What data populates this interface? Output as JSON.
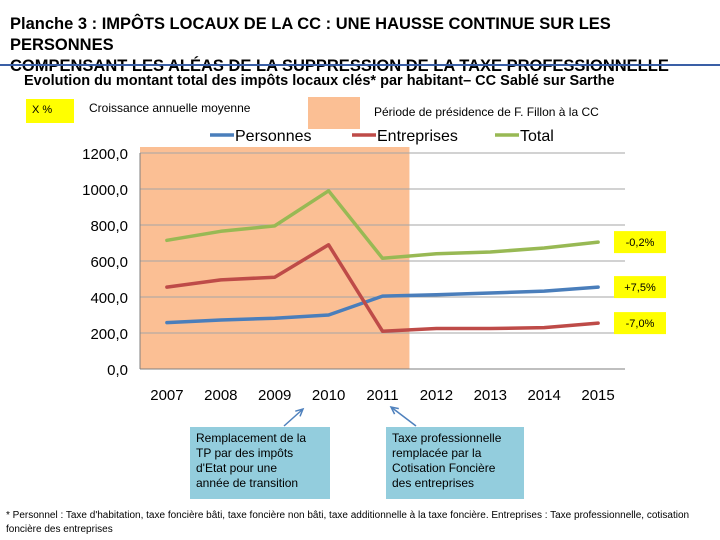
{
  "slide": {
    "title_line1": "Planche 3 : IMPÔTS LOCAUX DE LA CC : UNE HAUSSE CONTINUE  SUR LES PERSONNES",
    "title_line2": "COMPENSANT LES ALÉAS DE LA SUPPRESSION DE LA TAXE PROFESSIONNELLE",
    "subtitle": "Evolution du montant total des impôts locaux clés* par habitant– CC Sablé sur Sarthe",
    "legend_growth_box": "X %",
    "legend_growth_text": "Croissance annuelle moyenne",
    "legend_period_text": "Période de présidence de F. Fillon à la CC",
    "callout_2010": [
      "Remplacement de la",
      "TP par des impôts",
      "d'Etat pour une",
      "année de transition"
    ],
    "callout_2011": [
      "Taxe professionnelle",
      "remplacée par la",
      "Cotisation Foncière",
      "des entreprises"
    ],
    "footnote": "* Personnel : Taxe d'habitation, taxe foncière bâti, taxe foncière non bâti, taxe additionnelle à la taxe foncière. Entreprises : Taxe professionnelle, cotisation foncière des entreprises"
  },
  "chart_data": {
    "type": "line",
    "x": [
      "2007",
      "2008",
      "2009",
      "2010",
      "2011",
      "2012",
      "2013",
      "2014",
      "2015"
    ],
    "ylim": [
      0,
      1200
    ],
    "yticks": [
      "0,0",
      "200,0",
      "400,0",
      "600,0",
      "800,0",
      "1000,0",
      "1200,0"
    ],
    "grid": true,
    "legend_position": "top",
    "highlight_period": [
      "2007",
      "2012"
    ],
    "highlight_color": "#fbbf94",
    "series": [
      {
        "name": "Personnes",
        "color": "#4a7ebb",
        "values": [
          258,
          272,
          282,
          300,
          405,
          412,
          422,
          433,
          455
        ],
        "growth_label": "+7,5%"
      },
      {
        "name": "Entreprises",
        "color": "#be4b48",
        "values": [
          455,
          495,
          510,
          690,
          210,
          225,
          225,
          230,
          255
        ],
        "growth_label": "-7,0%"
      },
      {
        "name": "Total",
        "color": "#98b954",
        "values": [
          715,
          765,
          795,
          990,
          615,
          640,
          650,
          672,
          705
        ],
        "growth_label": "-0,2%"
      }
    ],
    "growth_label_color": "#ffff00"
  }
}
